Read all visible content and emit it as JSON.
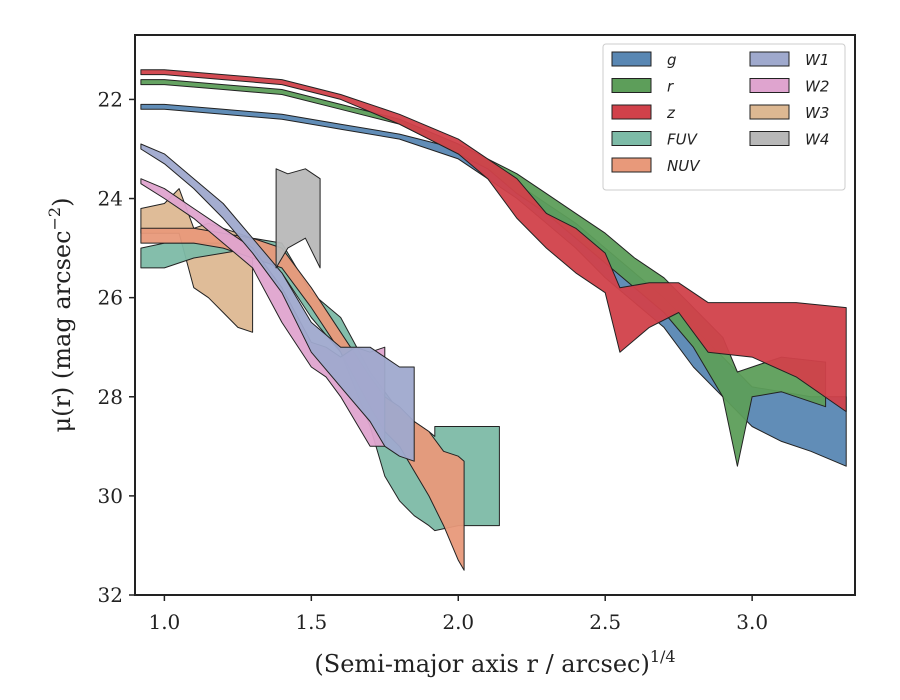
{
  "chart_data": {
    "type": "area",
    "xlabel": "(Semi-major axis r / arcsec)",
    "xlabel_exp": "1/4",
    "ylabel": "μ(r) (mag arcsec",
    "ylabel_exp": "−2",
    "ylabel_close": ")",
    "xlim": [
      0.9,
      3.35
    ],
    "ylim": [
      32.0,
      20.7
    ],
    "y_inverted": true,
    "xticks": [
      1.0,
      1.5,
      2.0,
      2.5,
      3.0
    ],
    "xtick_labels": [
      "1.0",
      "1.5",
      "2.0",
      "2.5",
      "3.0"
    ],
    "yticks": [
      22,
      24,
      26,
      28,
      30,
      32
    ],
    "ytick_labels": [
      "22",
      "24",
      "26",
      "28",
      "30",
      "32"
    ],
    "grid": false,
    "legend_position": "top-right",
    "legend_columns": 2,
    "series": [
      {
        "name": "W3",
        "color": "#ddb892",
        "x": [
          0.92,
          1.0,
          1.05,
          1.1,
          1.15,
          1.2,
          1.25,
          1.3
        ],
        "lower": [
          24.2,
          24.1,
          23.8,
          24.6,
          24.5,
          24.6,
          24.7,
          24.8
        ],
        "upper": [
          24.7,
          24.7,
          24.7,
          25.8,
          26.0,
          26.3,
          26.6,
          26.7
        ]
      },
      {
        "name": "FUV",
        "color": "#7dbba7",
        "x": [
          0.92,
          1.0,
          1.1,
          1.2,
          1.3,
          1.4,
          1.5,
          1.6,
          1.7,
          1.75,
          1.8,
          1.85,
          1.9,
          1.92,
          1.92,
          2.0,
          2.14
        ],
        "lower": [
          25.0,
          24.9,
          24.9,
          24.9,
          24.8,
          24.9,
          25.9,
          26.4,
          27.5,
          27.9,
          28.3,
          28.5,
          28.7,
          28.8,
          28.6,
          28.6,
          28.6
        ],
        "upper": [
          25.4,
          25.4,
          25.2,
          25.1,
          25.0,
          25.5,
          26.4,
          27.1,
          28.6,
          29.6,
          30.1,
          30.4,
          30.6,
          30.7,
          30.7,
          30.6,
          30.6
        ]
      },
      {
        "name": "NUV",
        "color": "#e8997a",
        "x": [
          0.92,
          1.0,
          1.1,
          1.2,
          1.3,
          1.4,
          1.5,
          1.6,
          1.7,
          1.75,
          1.8,
          1.85,
          1.9,
          1.95,
          2.0,
          2.02
        ],
        "lower": [
          24.6,
          24.6,
          24.6,
          24.7,
          24.8,
          25.0,
          25.8,
          26.7,
          27.6,
          28.0,
          28.2,
          28.5,
          28.7,
          29.1,
          29.2,
          29.3
        ],
        "upper": [
          24.9,
          24.9,
          24.9,
          25.0,
          25.2,
          25.4,
          26.2,
          27.1,
          28.2,
          28.7,
          29.0,
          29.5,
          30.0,
          30.6,
          31.3,
          31.5
        ]
      },
      {
        "name": "W2",
        "color": "#dfa4cf",
        "x": [
          0.92,
          1.0,
          1.1,
          1.2,
          1.3,
          1.4,
          1.5,
          1.55,
          1.6,
          1.65,
          1.7,
          1.75
        ],
        "lower": [
          23.6,
          23.8,
          24.2,
          24.6,
          25.0,
          25.8,
          26.9,
          27.0,
          27.2,
          27.0,
          27.1,
          27.0
        ],
        "upper": [
          23.7,
          24.0,
          24.4,
          24.9,
          25.4,
          26.5,
          27.4,
          27.6,
          28.0,
          28.5,
          29.0,
          29.0
        ]
      },
      {
        "name": "W1",
        "color": "#9fa9cd",
        "x": [
          0.92,
          1.0,
          1.1,
          1.2,
          1.3,
          1.4,
          1.5,
          1.6,
          1.7,
          1.75,
          1.8,
          1.85
        ],
        "lower": [
          22.9,
          23.1,
          23.6,
          24.1,
          24.8,
          25.5,
          26.5,
          27.0,
          27.0,
          27.2,
          27.4,
          27.4
        ],
        "upper": [
          23.0,
          23.3,
          23.8,
          24.4,
          25.1,
          25.9,
          27.1,
          27.8,
          28.5,
          29.0,
          29.2,
          29.3
        ]
      },
      {
        "name": "W4",
        "color": "#b8b8b8",
        "x": [
          1.38,
          1.42,
          1.48,
          1.53
        ],
        "lower": [
          23.4,
          23.5,
          23.4,
          23.6
        ],
        "upper": [
          25.4,
          25.0,
          24.8,
          25.4
        ]
      },
      {
        "name": "g",
        "color": "#5987b3",
        "x": [
          0.92,
          1.0,
          1.2,
          1.4,
          1.6,
          1.8,
          2.0,
          2.1,
          2.2,
          2.3,
          2.4,
          2.5,
          2.6,
          2.7,
          2.8,
          2.9,
          3.0,
          3.1,
          3.2,
          3.32
        ],
        "lower": [
          22.1,
          22.1,
          22.2,
          22.3,
          22.5,
          22.7,
          23.0,
          23.4,
          23.7,
          24.1,
          24.5,
          25.0,
          25.5,
          26.0,
          26.6,
          27.2,
          27.8,
          27.9,
          28.0,
          28.0
        ],
        "upper": [
          22.2,
          22.2,
          22.3,
          22.4,
          22.6,
          22.8,
          23.2,
          23.6,
          24.0,
          24.5,
          25.0,
          25.6,
          26.1,
          26.6,
          27.4,
          28.0,
          28.6,
          28.9,
          29.1,
          29.4
        ]
      },
      {
        "name": "r",
        "color": "#5d9e5a",
        "x": [
          0.92,
          1.0,
          1.2,
          1.4,
          1.6,
          1.8,
          2.0,
          2.1,
          2.2,
          2.3,
          2.4,
          2.5,
          2.6,
          2.7,
          2.8,
          2.9,
          2.95,
          3.0,
          3.1,
          3.25
        ],
        "lower": [
          21.6,
          21.6,
          21.7,
          21.8,
          22.1,
          22.4,
          22.9,
          23.2,
          23.5,
          23.9,
          24.3,
          24.7,
          25.2,
          25.6,
          26.2,
          26.8,
          27.5,
          27.4,
          27.2,
          27.3
        ],
        "upper": [
          21.7,
          21.7,
          21.8,
          21.9,
          22.2,
          22.5,
          23.1,
          23.4,
          23.9,
          24.3,
          24.8,
          25.3,
          25.8,
          26.3,
          27.0,
          28.0,
          29.4,
          28.0,
          27.9,
          28.2
        ]
      },
      {
        "name": "z",
        "color": "#d1414a",
        "x": [
          0.92,
          1.0,
          1.2,
          1.4,
          1.6,
          1.8,
          2.0,
          2.1,
          2.2,
          2.3,
          2.4,
          2.5,
          2.55,
          2.65,
          2.75,
          2.85,
          3.0,
          3.15,
          3.32
        ],
        "lower": [
          21.4,
          21.4,
          21.5,
          21.6,
          21.9,
          22.3,
          22.8,
          23.2,
          23.6,
          24.3,
          24.6,
          25.1,
          25.8,
          25.7,
          25.7,
          26.1,
          26.1,
          26.1,
          26.2
        ],
        "upper": [
          21.5,
          21.5,
          21.6,
          21.7,
          22.0,
          22.5,
          23.1,
          23.6,
          24.4,
          25.0,
          25.5,
          25.9,
          27.1,
          26.6,
          26.3,
          27.1,
          27.2,
          27.6,
          28.3
        ]
      }
    ],
    "legend_order": [
      "g",
      "r",
      "z",
      "FUV",
      "NUV",
      "W1",
      "W2",
      "W3",
      "W4"
    ]
  }
}
